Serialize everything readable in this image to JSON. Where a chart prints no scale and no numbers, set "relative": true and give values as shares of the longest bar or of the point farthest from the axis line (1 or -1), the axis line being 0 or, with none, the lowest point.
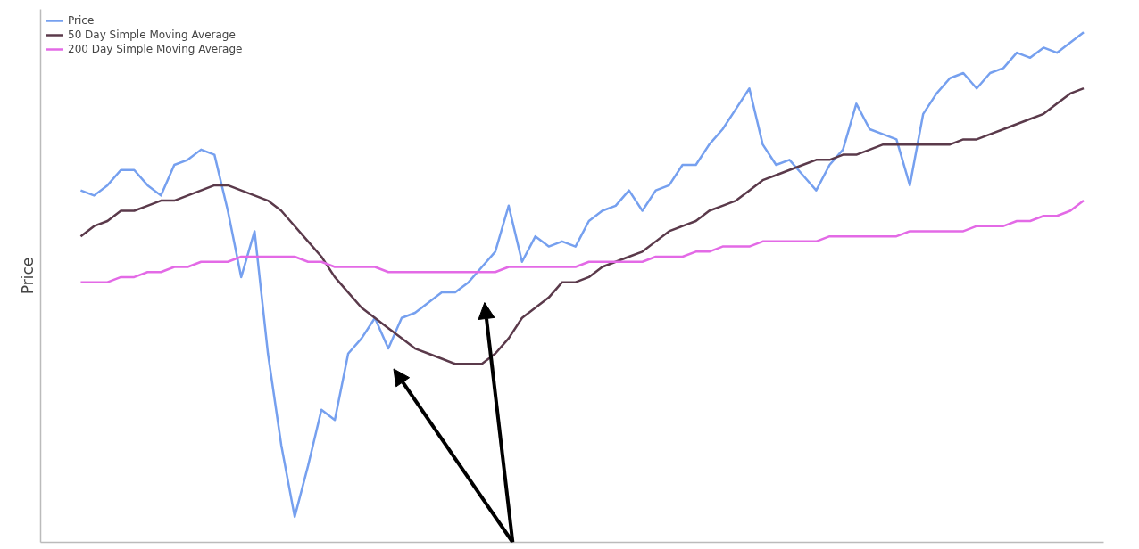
{
  "chart_data": {
    "type": "line",
    "ylabel": "Price",
    "relative": true,
    "tick_labels": false,
    "legend": "top left",
    "marker": "none",
    "line_style": "solid",
    "categories": [
      null,
      null,
      null,
      null,
      null,
      null,
      null,
      null,
      null,
      null,
      null,
      null,
      null,
      null,
      null,
      null,
      null,
      null,
      null,
      null,
      null,
      null,
      null,
      null,
      null,
      null,
      null,
      null,
      null,
      null,
      null,
      null,
      null,
      null,
      null,
      null,
      null,
      null,
      null,
      null,
      null,
      null,
      null,
      null,
      null,
      null,
      null,
      null,
      null,
      null,
      null,
      null,
      null,
      null,
      null,
      null,
      null,
      null,
      null,
      null,
      null,
      null,
      null,
      null,
      null,
      null,
      null,
      null,
      null,
      null,
      null,
      null,
      null,
      null,
      null,
      null
    ],
    "series": [
      {
        "name": "Price",
        "color": "#76a0ef",
        "values": [
          0.69,
          0.68,
          0.7,
          0.73,
          0.73,
          0.7,
          0.68,
          0.74,
          0.75,
          0.77,
          0.76,
          0.65,
          0.52,
          0.61,
          0.37,
          0.19,
          0.05,
          0.15,
          0.26,
          0.24,
          0.37,
          0.4,
          0.44,
          0.38,
          0.44,
          0.45,
          0.47,
          0.49,
          0.49,
          0.51,
          0.54,
          0.57,
          0.66,
          0.55,
          0.6,
          0.58,
          0.59,
          0.58,
          0.63,
          0.65,
          0.66,
          0.69,
          0.65,
          0.69,
          0.7,
          0.74,
          0.74,
          0.78,
          0.81,
          0.85,
          0.89,
          0.78,
          0.74,
          0.75,
          0.72,
          0.69,
          0.74,
          0.77,
          0.86,
          0.81,
          0.8,
          0.79,
          0.7,
          0.84,
          0.88,
          0.91,
          0.92,
          0.89,
          0.92,
          0.93,
          0.96,
          0.95,
          0.97,
          0.96,
          0.98,
          1
        ]
      },
      {
        "name": "50 Day Simple Moving Average",
        "color": "#5b3a4b",
        "values": [
          0.6,
          0.62,
          0.63,
          0.65,
          0.65,
          0.66,
          0.67,
          0.67,
          0.68,
          0.69,
          0.7,
          0.7,
          0.69,
          0.68,
          0.67,
          0.65,
          0.62,
          0.59,
          0.56,
          0.52,
          0.49,
          0.46,
          0.44,
          0.42,
          0.4,
          0.38,
          0.37,
          0.36,
          0.35,
          0.35,
          0.35,
          0.37,
          0.4,
          0.44,
          0.46,
          0.48,
          0.51,
          0.51,
          0.52,
          0.54,
          0.55,
          0.56,
          0.57,
          0.59,
          0.61,
          0.62,
          0.63,
          0.65,
          0.66,
          0.67,
          0.69,
          0.71,
          0.72,
          0.73,
          0.74,
          0.75,
          0.75,
          0.76,
          0.76,
          0.77,
          0.78,
          0.78,
          0.78,
          0.78,
          0.78,
          0.78,
          0.79,
          0.79,
          0.8,
          0.81,
          0.82,
          0.83,
          0.84,
          0.86,
          0.88,
          0.89
        ]
      },
      {
        "name": "200 Day Simple Moving Average",
        "color": "#e36ae6",
        "values": [
          0.51,
          0.51,
          0.51,
          0.52,
          0.52,
          0.53,
          0.53,
          0.54,
          0.54,
          0.55,
          0.55,
          0.55,
          0.56,
          0.56,
          0.56,
          0.56,
          0.56,
          0.55,
          0.55,
          0.54,
          0.54,
          0.54,
          0.54,
          0.53,
          0.53,
          0.53,
          0.53,
          0.53,
          0.53,
          0.53,
          0.53,
          0.53,
          0.54,
          0.54,
          0.54,
          0.54,
          0.54,
          0.54,
          0.55,
          0.55,
          0.55,
          0.55,
          0.55,
          0.56,
          0.56,
          0.56,
          0.57,
          0.57,
          0.58,
          0.58,
          0.58,
          0.59,
          0.59,
          0.59,
          0.59,
          0.59,
          0.6,
          0.6,
          0.6,
          0.6,
          0.6,
          0.6,
          0.61,
          0.61,
          0.61,
          0.61,
          0.61,
          0.62,
          0.62,
          0.62,
          0.63,
          0.63,
          0.64,
          0.64,
          0.65,
          0.67
        ]
      }
    ]
  }
}
